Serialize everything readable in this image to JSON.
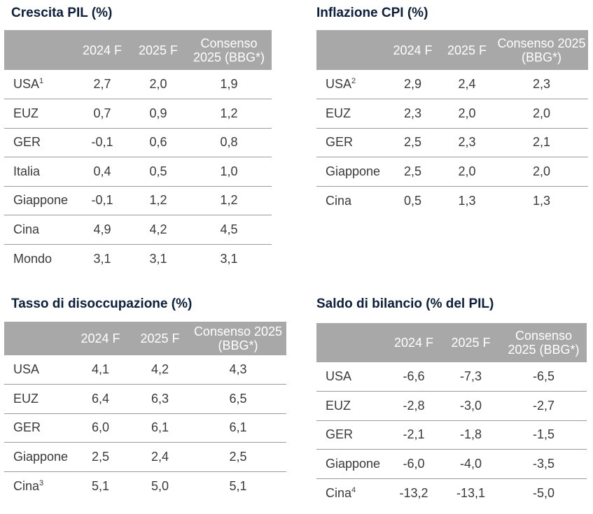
{
  "panels": [
    {
      "title": "Crescita PIL (%)",
      "headers": [
        "",
        "2024 F",
        "2025 F",
        "Consenso 2025 (BBG*)"
      ],
      "rows": [
        {
          "label": "USA",
          "sup": "1",
          "values": [
            "2,7",
            "2,0",
            "1,9"
          ]
        },
        {
          "label": "EUZ",
          "sup": "",
          "values": [
            "0,7",
            "0,9",
            "1,2"
          ]
        },
        {
          "label": "GER",
          "sup": "",
          "values": [
            "-0,1",
            "0,6",
            "0,8"
          ]
        },
        {
          "label": "Italia",
          "sup": "",
          "values": [
            "0,4",
            "0,5",
            "1,0"
          ]
        },
        {
          "label": "Giappone",
          "sup": "",
          "values": [
            "-0,1",
            "1,2",
            "1,2"
          ]
        },
        {
          "label": "Cina",
          "sup": "",
          "values": [
            "4,9",
            "4,2",
            "4,5"
          ]
        },
        {
          "label": "Mondo",
          "sup": "",
          "values": [
            "3,1",
            "3,1",
            "3,1"
          ]
        }
      ]
    },
    {
      "title": "Inflazione CPI (%)",
      "headers": [
        "",
        "2024 F",
        "2025 F",
        "Consenso 2025 (BBG*)"
      ],
      "rows": [
        {
          "label": "USA",
          "sup": "2",
          "values": [
            "2,9",
            "2,4",
            "2,3"
          ]
        },
        {
          "label": "EUZ",
          "sup": "",
          "values": [
            "2,3",
            "2,0",
            "2,0"
          ]
        },
        {
          "label": "GER",
          "sup": "",
          "values": [
            "2,5",
            "2,3",
            "2,1"
          ]
        },
        {
          "label": "Giappone",
          "sup": "",
          "values": [
            "2,5",
            "2,0",
            "2,0"
          ]
        },
        {
          "label": "Cina",
          "sup": "",
          "values": [
            "0,5",
            "1,3",
            "1,3"
          ]
        }
      ]
    },
    {
      "title": "Tasso di disoccupazione (%)",
      "headers": [
        "",
        "2024 F",
        "2025 F",
        "Consenso 2025 (BBG*)"
      ],
      "rows": [
        {
          "label": "USA",
          "sup": "",
          "values": [
            "4,1",
            "4,2",
            "4,3"
          ]
        },
        {
          "label": "EUZ",
          "sup": "",
          "values": [
            "6,4",
            "6,3",
            "6,5"
          ]
        },
        {
          "label": "GER",
          "sup": "",
          "values": [
            "6,0",
            "6,1",
            "6,1"
          ]
        },
        {
          "label": "Giappone",
          "sup": "",
          "values": [
            "2,5",
            "2,4",
            "2,5"
          ]
        },
        {
          "label": "Cina",
          "sup": "3",
          "values": [
            "5,1",
            "5,0",
            "5,1"
          ]
        }
      ]
    },
    {
      "title": "Saldo di bilancio (% del PIL)",
      "headers": [
        "",
        "2024 F",
        "2025 F",
        "Consenso 2025 (BBG*)"
      ],
      "rows": [
        {
          "label": "USA",
          "sup": "",
          "values": [
            "-6,6",
            "-7,3",
            "-6,5"
          ]
        },
        {
          "label": "EUZ",
          "sup": "",
          "values": [
            "-2,8",
            "-3,0",
            "-2,7"
          ]
        },
        {
          "label": "GER",
          "sup": "",
          "values": [
            "-2,1",
            "-1,8",
            "-1,5"
          ]
        },
        {
          "label": "Giappone",
          "sup": "",
          "values": [
            "-6,0",
            "-4,0",
            "-3,5"
          ]
        },
        {
          "label": "Cina",
          "sup": "4",
          "values": [
            "-13,2",
            "-13,1",
            "-5,0"
          ]
        }
      ]
    }
  ]
}
